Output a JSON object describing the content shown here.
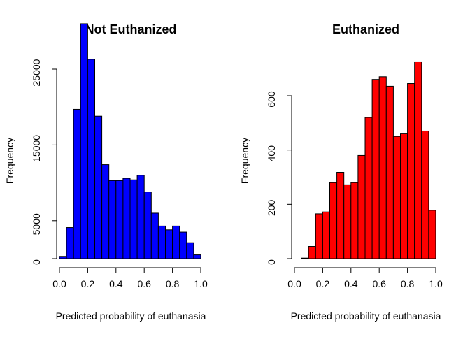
{
  "chart_data": [
    {
      "type": "bar",
      "title": "Not Euthanized",
      "xlabel": "Predicted probability of euthanasia",
      "ylabel": "Frequency",
      "bar_color": "#0000ff",
      "bin_width": 0.05,
      "bin_starts": [
        0.0,
        0.05,
        0.1,
        0.15,
        0.2,
        0.25,
        0.3,
        0.35,
        0.4,
        0.45,
        0.5,
        0.55,
        0.6,
        0.65,
        0.7,
        0.75,
        0.8,
        0.85,
        0.9,
        0.95
      ],
      "values": [
        300,
        4100,
        19700,
        31000,
        26300,
        18800,
        12400,
        10300,
        10300,
        10600,
        10400,
        11000,
        8800,
        6000,
        4300,
        3800,
        4300,
        3500,
        2100,
        500
      ],
      "xlim": [
        0,
        1
      ],
      "ylim": [
        0,
        30000
      ],
      "x_ticks": [
        "0.0",
        "0.2",
        "0.4",
        "0.6",
        "0.8",
        "1.0"
      ],
      "y_ticks": [
        "0",
        "5000",
        "15000",
        "25000"
      ]
    },
    {
      "type": "bar",
      "title": "Euthanized",
      "xlabel": "Predicted probability of euthanasia",
      "ylabel": "Frequency",
      "bar_color": "#ff0000",
      "bin_width": 0.05,
      "bin_starts": [
        0.05,
        0.1,
        0.15,
        0.2,
        0.25,
        0.3,
        0.35,
        0.4,
        0.45,
        0.5,
        0.55,
        0.6,
        0.65,
        0.7,
        0.75,
        0.8,
        0.85,
        0.9,
        0.95
      ],
      "values": [
        2,
        45,
        165,
        172,
        280,
        318,
        272,
        280,
        380,
        520,
        660,
        670,
        635,
        450,
        462,
        645,
        725,
        470,
        178
      ],
      "xlim": [
        0,
        1
      ],
      "ylim": [
        0,
        700
      ],
      "x_ticks": [
        "0.0",
        "0.2",
        "0.4",
        "0.6",
        "0.8",
        "1.0"
      ],
      "y_ticks": [
        "0",
        "200",
        "400",
        "600"
      ]
    }
  ]
}
